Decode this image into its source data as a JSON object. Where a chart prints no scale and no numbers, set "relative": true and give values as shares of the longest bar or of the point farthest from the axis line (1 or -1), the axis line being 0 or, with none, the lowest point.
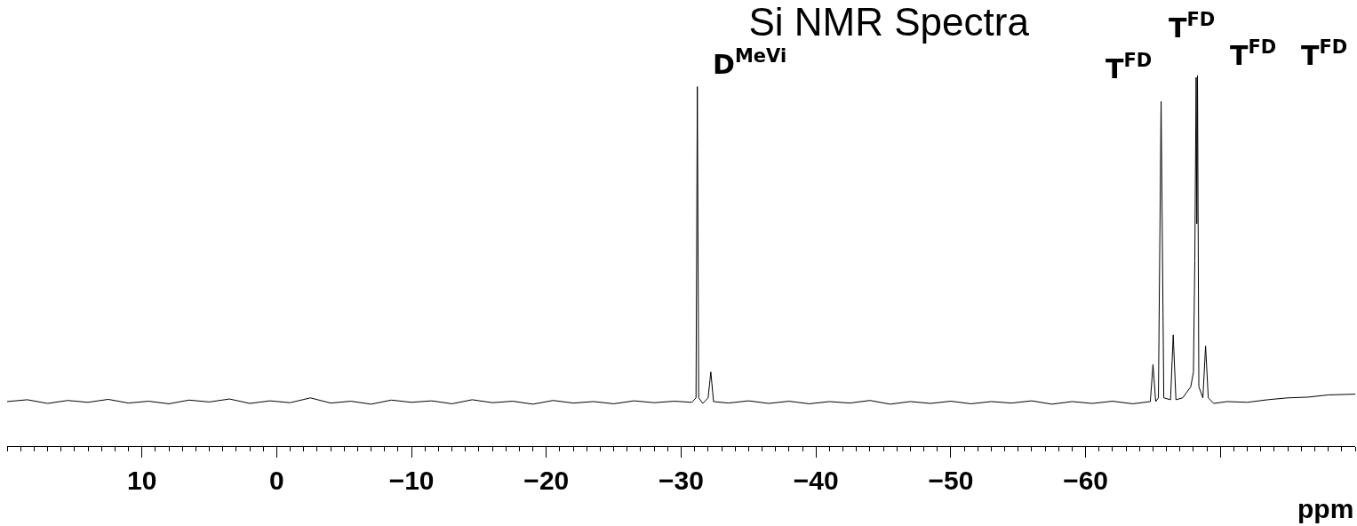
{
  "chart_data": {
    "type": "line",
    "title": "Si NMR Spectra",
    "xlabel": "ppm",
    "relative": true,
    "grid": false,
    "marker": "none",
    "line_style": "solid",
    "xlim": [
      20,
      -80
    ],
    "xticks": [
      10,
      0,
      {
        "value": -10,
        "label": "−10"
      },
      {
        "value": -20,
        "label": "−20"
      },
      {
        "value": -30,
        "label": "−30"
      },
      {
        "value": -40,
        "label": "−40"
      },
      {
        "value": -50,
        "label": "−50"
      },
      {
        "value": -60,
        "label": "−60"
      },
      {
        "value": -70,
        "label": null
      }
    ],
    "annotations": [
      "D$^{MeVi}$",
      "T$^{FD}$",
      "T$^{FD}$",
      "T$^{FD}$",
      "T$^{FD}$"
    ],
    "series": [
      {
        "color": "#000000",
        "x": [
          20,
          18.5,
          17,
          15.5,
          14,
          12.5,
          11,
          9.5,
          8,
          6.5,
          5,
          3.5,
          2,
          0.5,
          -1,
          -2.5,
          -4,
          -5.5,
          -7,
          -8.5,
          -10,
          -11.5,
          -13,
          -14.5,
          -16,
          -17.5,
          -19,
          -20.5,
          -22,
          -23.5,
          -25,
          -26.5,
          -28,
          -29.5,
          -30.8,
          -31.1,
          -31.2,
          -31.3,
          -31.6,
          -32.0,
          -32.2,
          -32.4,
          -33.5,
          -35,
          -36.5,
          -38,
          -39.5,
          -41,
          -42.5,
          -44,
          -45.5,
          -47,
          -48.5,
          -50,
          -51.5,
          -53,
          -54.5,
          -56,
          -57.5,
          -59,
          -60.5,
          -62,
          -63.5,
          -64.8,
          -65.0,
          -65.2,
          -65.4,
          -65.6,
          -65.8,
          -66.3,
          -66.5,
          -66.7,
          -67.2,
          -67.8,
          -68.0,
          -68.1,
          -68.2,
          -68.25,
          -68.3,
          -68.4,
          -68.7,
          -68.9,
          -69.1,
          -69.5,
          -70.5,
          -72,
          -73.5,
          -75,
          -76.5,
          -78,
          -80
        ],
        "values": [
          0.12,
          0.125,
          0.115,
          0.123,
          0.118,
          0.126,
          0.116,
          0.121,
          0.114,
          0.124,
          0.119,
          0.127,
          0.115,
          0.122,
          0.117,
          0.13,
          0.116,
          0.121,
          0.113,
          0.124,
          0.118,
          0.122,
          0.114,
          0.125,
          0.117,
          0.121,
          0.113,
          0.123,
          0.116,
          0.12,
          0.114,
          0.122,
          0.117,
          0.121,
          0.118,
          0.13,
          0.97,
          0.13,
          0.115,
          0.13,
          0.2,
          0.12,
          0.116,
          0.122,
          0.115,
          0.121,
          0.114,
          0.12,
          0.116,
          0.123,
          0.113,
          0.12,
          0.115,
          0.121,
          0.114,
          0.12,
          0.116,
          0.122,
          0.113,
          0.12,
          0.115,
          0.121,
          0.114,
          0.12,
          0.22,
          0.12,
          0.13,
          0.93,
          0.13,
          0.125,
          0.3,
          0.125,
          0.13,
          0.16,
          0.2,
          0.5,
          0.995,
          0.6,
          1,
          0.16,
          0.13,
          0.27,
          0.13,
          0.115,
          0.12,
          0.118,
          0.125,
          0.13,
          0.132,
          0.138,
          0.14
        ]
      }
    ]
  }
}
